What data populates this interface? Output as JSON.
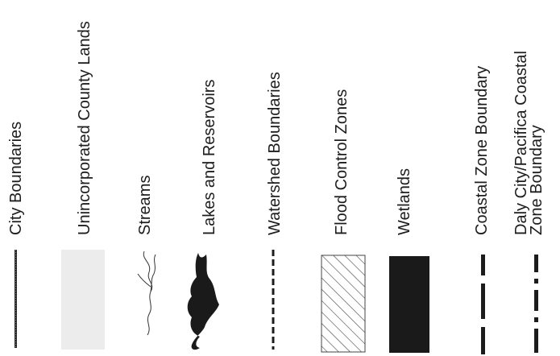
{
  "legend": {
    "items": [
      {
        "label": "City Boundaries",
        "symbol": "city-boundary-line"
      },
      {
        "label": "Unincorporated County Lands",
        "symbol": "stippled-area"
      },
      {
        "label": "Streams",
        "symbol": "stream-line"
      },
      {
        "label": "Lakes and Reservoirs",
        "symbol": "lake-fill"
      },
      {
        "label": "Watershed Boundaries",
        "symbol": "dashed-line"
      },
      {
        "label": "Flood Control Zones",
        "symbol": "hatched-box"
      },
      {
        "label": "Wetlands",
        "symbol": "solid-box"
      },
      {
        "label": "Coastal Zone Boundary",
        "symbol": "long-dash-line"
      },
      {
        "label_line1": "Daly City/Pacifica Coastal",
        "label_line2": "Zone Boundary",
        "symbol": "dash-dot-line"
      }
    ]
  },
  "colors": {
    "ink": "#1c1c1c",
    "stipple": "#ececec",
    "hatch": "#444444"
  }
}
